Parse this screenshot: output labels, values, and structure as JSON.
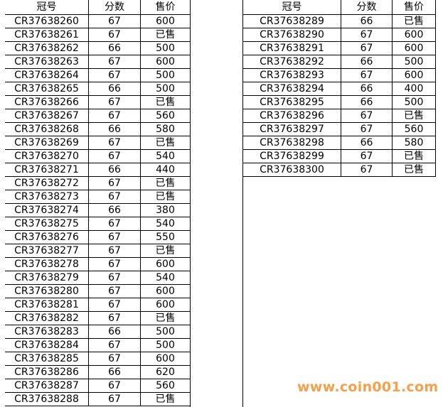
{
  "tables": [
    {
      "header": [
        "冠号",
        "分数",
        "售价"
      ],
      "rows": [
        [
          "CR37638260",
          "67",
          "600"
        ],
        [
          "CR37638261",
          "67",
          "已售"
        ],
        [
          "CR37638262",
          "66",
          "500"
        ],
        [
          "CR37638263",
          "67",
          "600"
        ],
        [
          "CR37638264",
          "67",
          "500"
        ],
        [
          "CR37638265",
          "66",
          "500"
        ],
        [
          "CR37638266",
          "67",
          "已售"
        ],
        [
          "CR37638267",
          "67",
          "560"
        ],
        [
          "CR37638268",
          "66",
          "580"
        ],
        [
          "CR37638269",
          "67",
          "已售"
        ],
        [
          "CR37638270",
          "67",
          "540"
        ],
        [
          "CR37638271",
          "66",
          "440"
        ],
        [
          "CR37638272",
          "67",
          "已售"
        ],
        [
          "CR37638273",
          "67",
          "已售"
        ],
        [
          "CR37638274",
          "66",
          "380"
        ],
        [
          "CR37638275",
          "67",
          "540"
        ],
        [
          "CR37638276",
          "67",
          "550"
        ],
        [
          "CR37638277",
          "67",
          "已售"
        ],
        [
          "CR37638278",
          "67",
          "600"
        ],
        [
          "CR37638279",
          "67",
          "540"
        ],
        [
          "CR37638280",
          "67",
          "600"
        ],
        [
          "CR37638281",
          "67",
          "600"
        ],
        [
          "CR37638282",
          "67",
          "已售"
        ],
        [
          "CR37638283",
          "66",
          "500"
        ],
        [
          "CR37638284",
          "67",
          "500"
        ],
        [
          "CR37638285",
          "67",
          "600"
        ],
        [
          "CR37638286",
          "66",
          "620"
        ],
        [
          "CR37638287",
          "67",
          "560"
        ],
        [
          "CR37638288",
          "67",
          "已售"
        ]
      ]
    },
    {
      "header": [
        "冠号",
        "分数",
        "售价"
      ],
      "rows": [
        [
          "CR37638289",
          "66",
          "已售"
        ],
        [
          "CR37638290",
          "67",
          "600"
        ],
        [
          "CR37638291",
          "67",
          "600"
        ],
        [
          "CR37638292",
          "66",
          "500"
        ],
        [
          "CR37638293",
          "67",
          "600"
        ],
        [
          "CR37638294",
          "66",
          "400"
        ],
        [
          "CR37638295",
          "66",
          "500"
        ],
        [
          "CR37638296",
          "67",
          "已售"
        ],
        [
          "CR37638297",
          "67",
          "560"
        ],
        [
          "CR37638298",
          "66",
          "580"
        ],
        [
          "CR37638299",
          "67",
          "已售"
        ],
        [
          "CR37638300",
          "67",
          "已售"
        ]
      ]
    }
  ],
  "watermark": "www.coin001.com"
}
